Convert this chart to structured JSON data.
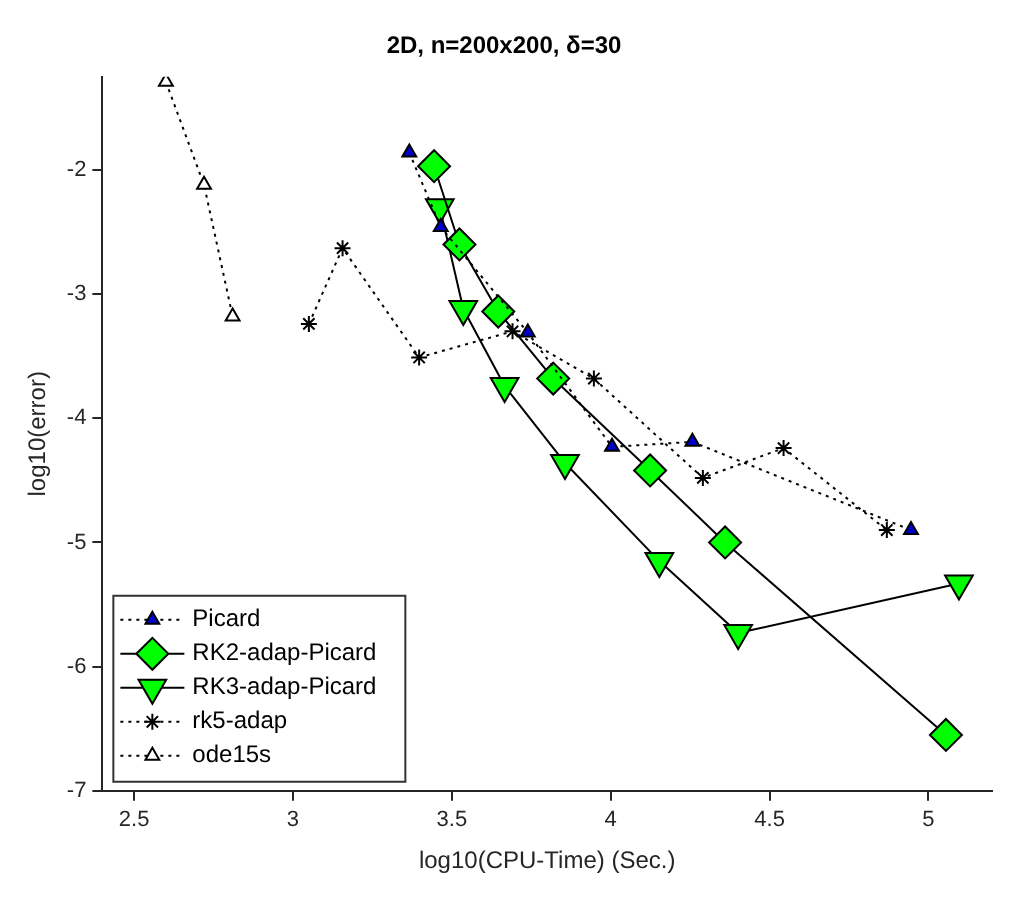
{
  "chart_data": {
    "type": "line",
    "title": "2D, n=200x200, δ=30",
    "xlabel": "log10(CPU-Time) (Sec.)",
    "ylabel": "log10(error)",
    "xlim": [
      2.4,
      5.2
    ],
    "xticks": [
      2.5,
      3,
      3.5,
      4,
      4.5,
      5
    ],
    "ylim": [
      -7,
      -1.25
    ],
    "yticks": [
      -7,
      -6,
      -5,
      -4,
      -3,
      -2
    ],
    "grid": false,
    "legend": "bottom left",
    "series": [
      {
        "name": "Picard",
        "color": "#0000cc",
        "marker": "triangle",
        "line_style": "dotted",
        "x": [
          3.366,
          3.465,
          3.739,
          4.004,
          4.257,
          4.945
        ],
        "values": [
          -1.86,
          -2.46,
          -3.31,
          -4.23,
          -4.19,
          -4.9
        ]
      },
      {
        "name": "RK2-adap-Picard",
        "color": "#00ff00",
        "marker": "diamond",
        "line_style": "solid",
        "x": [
          3.444,
          3.524,
          3.646,
          3.819,
          4.124,
          4.36,
          5.055
        ],
        "values": [
          -1.97,
          -2.6,
          -3.14,
          -3.68,
          -4.42,
          -5.0,
          -6.55
        ]
      },
      {
        "name": "RK3-adap-Picard",
        "color": "#00ff00",
        "marker": "triangle-down",
        "line_style": "solid",
        "x": [
          3.462,
          3.536,
          3.666,
          3.856,
          4.153,
          4.401,
          5.096
        ],
        "values": [
          -2.3,
          -3.12,
          -3.74,
          -4.36,
          -5.15,
          -5.73,
          -5.33
        ]
      },
      {
        "name": "rk5-adap",
        "color": "#000000",
        "marker": "cross",
        "line_style": "dotted",
        "x": [
          3.05,
          3.156,
          3.397,
          3.691,
          3.947,
          4.29,
          4.544,
          4.869
        ],
        "values": [
          -3.24,
          -2.63,
          -3.51,
          -3.3,
          -3.68,
          -4.48,
          -4.24,
          -4.9
        ]
      },
      {
        "name": "ode15s",
        "color": "#ffffff",
        "marker": "triangle",
        "line_style": "dotted",
        "x": [
          2.6,
          2.72,
          2.81
        ],
        "values": [
          -1.29,
          -2.12,
          -3.18
        ]
      }
    ]
  }
}
